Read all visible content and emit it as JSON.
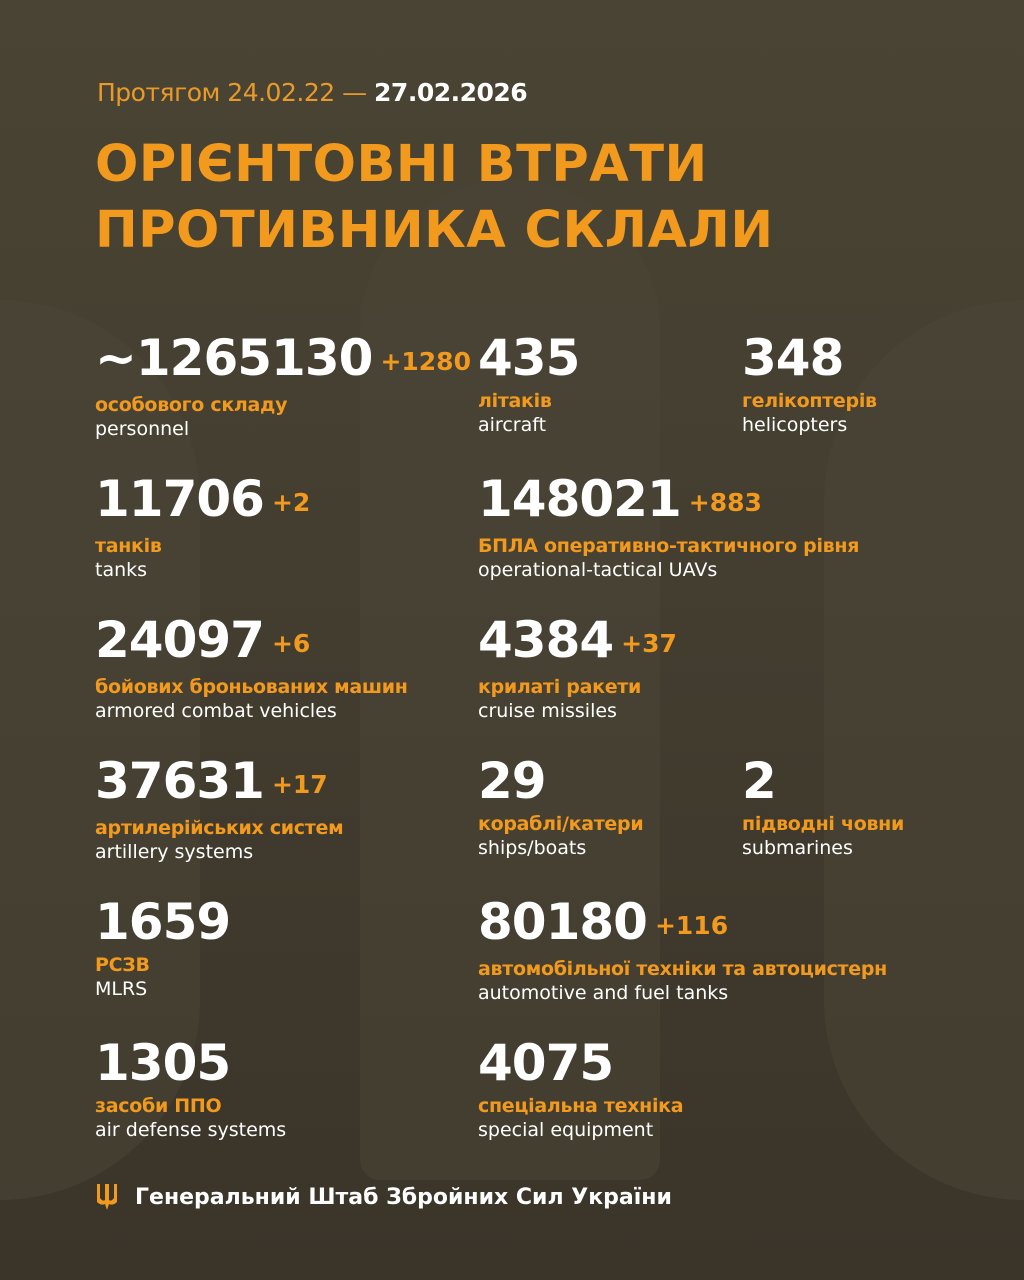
{
  "header": {
    "period_prefix": "Протягом 24.02.22 —",
    "period_end": "27.02.2026",
    "title_line1": "ОРІЄНТОВНІ ВТРАТИ",
    "title_line2": "ПРОТИВНИКА СКЛАЛИ"
  },
  "colors": {
    "accent": "#f29a1e",
    "background": "#433d30",
    "text": "#ffffff"
  },
  "stats": [
    {
      "value": "~1265130",
      "delta": "+1280",
      "ua": "особового складу",
      "en": "personnel"
    },
    {
      "value": "435",
      "delta": "",
      "ua": "літаків",
      "en": "aircraft"
    },
    {
      "value": "348",
      "delta": "",
      "ua": "гелікоптерів",
      "en": "helicopters"
    },
    {
      "value": "11706",
      "delta": "+2",
      "ua": "танків",
      "en": "tanks"
    },
    {
      "value": "148021",
      "delta": "+883",
      "ua": "БПЛА оперативно-тактичного рівня",
      "en": "operational-tactical UAVs"
    },
    {
      "value": "24097",
      "delta": "+6",
      "ua": "бойових броньованих машин",
      "en": "armored combat vehicles"
    },
    {
      "value": "4384",
      "delta": "+37",
      "ua": "крилаті ракети",
      "en": "cruise missiles"
    },
    {
      "value": "37631",
      "delta": "+17",
      "ua": "артилерійських систем",
      "en": "artillery systems"
    },
    {
      "value": "29",
      "delta": "",
      "ua": "кораблі/катери",
      "en": "ships/boats"
    },
    {
      "value": "2",
      "delta": "",
      "ua": "підводні човни",
      "en": "submarines"
    },
    {
      "value": "1659",
      "delta": "",
      "ua": "РСЗВ",
      "en": "MLRS"
    },
    {
      "value": "80180",
      "delta": "+116",
      "ua": "автомобільної техніки та автоцистерн",
      "en": "automotive and fuel tanks"
    },
    {
      "value": "1305",
      "delta": "",
      "ua": "засоби ППО",
      "en": "air defense systems"
    },
    {
      "value": "4075",
      "delta": "",
      "ua": "спеціальна техніка",
      "en": "special equipment"
    }
  ],
  "footer": {
    "icon": "trident-icon",
    "text": "Генеральний Штаб Збройних Сил України"
  }
}
